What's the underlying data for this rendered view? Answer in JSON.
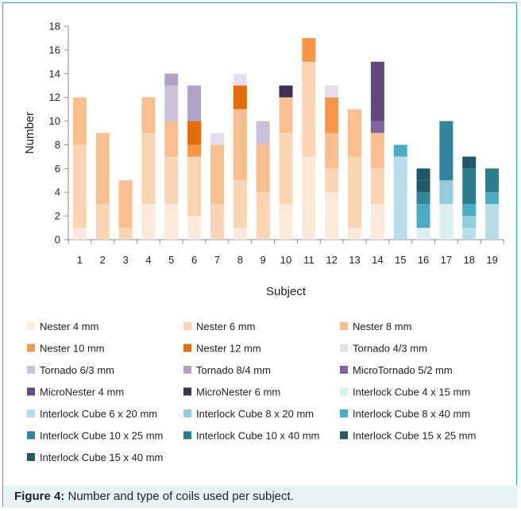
{
  "caption": {
    "label": "Figure 4:",
    "text": " Number and type of coils used per subject."
  },
  "chart_data": {
    "type": "bar",
    "stacked": true,
    "xlabel": "Subject",
    "ylabel": "Number",
    "ylim": [
      0,
      18
    ],
    "yticks": [
      0,
      2,
      4,
      6,
      8,
      10,
      12,
      14,
      16,
      18
    ],
    "grid": false,
    "legend_position": "bottom",
    "categories": [
      "1",
      "2",
      "3",
      "4",
      "5",
      "6",
      "7",
      "8",
      "9",
      "10",
      "11",
      "12",
      "13",
      "14",
      "15",
      "16",
      "17",
      "18",
      "19"
    ],
    "series": [
      {
        "name": "Nester 4 mm",
        "color": "#fde9d9",
        "values": [
          1,
          0,
          0,
          3,
          3,
          2,
          0,
          1,
          0,
          3,
          7,
          4,
          1,
          3,
          0,
          0,
          0,
          0,
          0
        ]
      },
      {
        "name": "Nester 6 mm",
        "color": "#fbd4b4",
        "values": [
          7,
          3,
          1,
          6,
          4,
          5,
          3,
          4,
          4,
          6,
          8,
          2,
          6,
          3,
          0,
          0,
          0,
          0,
          0
        ]
      },
      {
        "name": "Nester 8 mm",
        "color": "#fabf8f",
        "values": [
          4,
          6,
          4,
          3,
          3,
          0,
          5,
          6,
          4,
          3,
          0,
          3,
          4,
          3,
          0,
          0,
          0,
          0,
          0
        ]
      },
      {
        "name": "Nester 10 mm",
        "color": "#f79646",
        "values": [
          0,
          0,
          0,
          0,
          0,
          1,
          0,
          0,
          0,
          0,
          2,
          3,
          0,
          0,
          0,
          0,
          0,
          0,
          0
        ]
      },
      {
        "name": "Nester 12 mm",
        "color": "#e36c09",
        "values": [
          0,
          0,
          0,
          0,
          0,
          2,
          0,
          2,
          0,
          0,
          0,
          0,
          0,
          0,
          0,
          0,
          0,
          0,
          0
        ]
      },
      {
        "name": "Tornado 4/3 mm",
        "color": "#e5dfec",
        "values": [
          0,
          0,
          0,
          0,
          0,
          0,
          1,
          1,
          0,
          0,
          0,
          1,
          0,
          0,
          0,
          0,
          0,
          0,
          0
        ]
      },
      {
        "name": "Tornado 6/3 mm",
        "color": "#ccc1d9",
        "values": [
          0,
          0,
          0,
          0,
          3,
          0,
          0,
          0,
          2,
          0,
          0,
          0,
          0,
          0,
          0,
          0,
          0,
          0,
          0
        ]
      },
      {
        "name": "Tornado 8/4 mm",
        "color": "#b2a1c7",
        "values": [
          0,
          0,
          0,
          0,
          1,
          3,
          0,
          0,
          0,
          0,
          0,
          0,
          0,
          0,
          0,
          0,
          0,
          0,
          0
        ]
      },
      {
        "name": "MicroTornado 5/2 mm",
        "color": "#8064a2",
        "values": [
          0,
          0,
          0,
          0,
          0,
          0,
          0,
          0,
          0,
          0,
          0,
          0,
          0,
          1,
          0,
          0,
          0,
          0,
          0
        ]
      },
      {
        "name": "MicroNester 4 mm",
        "color": "#60497a",
        "values": [
          0,
          0,
          0,
          0,
          0,
          0,
          0,
          0,
          0,
          0,
          0,
          0,
          0,
          5,
          0,
          0,
          0,
          0,
          0
        ]
      },
      {
        "name": "MicroNester 6 mm",
        "color": "#3f3151",
        "values": [
          0,
          0,
          0,
          0,
          0,
          0,
          0,
          0,
          0,
          1,
          0,
          0,
          0,
          0,
          0,
          0,
          0,
          0,
          0
        ]
      },
      {
        "name": "Interlock Cube 4 x 15 mm",
        "color": "#daeef3",
        "values": [
          0,
          0,
          0,
          0,
          0,
          0,
          0,
          0,
          0,
          0,
          0,
          0,
          0,
          0,
          0,
          1,
          3,
          0,
          0
        ]
      },
      {
        "name": "Interlock Cube 6 x 20 mm",
        "color": "#b6dde8",
        "values": [
          0,
          0,
          0,
          0,
          0,
          0,
          0,
          0,
          0,
          0,
          0,
          0,
          0,
          0,
          7,
          0,
          0,
          1,
          3
        ]
      },
      {
        "name": "Interlock Cube 8 x 20 mm",
        "color": "#92cddc",
        "values": [
          0,
          0,
          0,
          0,
          0,
          0,
          0,
          0,
          0,
          0,
          0,
          0,
          0,
          0,
          0,
          0,
          2,
          1,
          0
        ]
      },
      {
        "name": "Interlock Cube 8 x 40 mm",
        "color": "#4bacc6",
        "values": [
          0,
          0,
          0,
          0,
          0,
          0,
          0,
          0,
          0,
          0,
          0,
          0,
          0,
          0,
          1,
          2,
          0,
          1,
          1
        ]
      },
      {
        "name": "Interlock Cube 10 x 25 mm",
        "color": "#31859c",
        "values": [
          0,
          0,
          0,
          0,
          0,
          0,
          0,
          0,
          0,
          0,
          0,
          0,
          0,
          0,
          0,
          1,
          5,
          0,
          0
        ]
      },
      {
        "name": "Interlock Cube 10 x 40 mm",
        "color": "#2b7d8c",
        "values": [
          0,
          0,
          0,
          0,
          0,
          0,
          0,
          0,
          0,
          0,
          0,
          0,
          0,
          0,
          0,
          0,
          0,
          3,
          2
        ]
      },
      {
        "name": "Interlock Cube 15 x 25 mm",
        "color": "#215968",
        "values": [
          0,
          0,
          0,
          0,
          0,
          0,
          0,
          0,
          0,
          0,
          0,
          0,
          0,
          0,
          0,
          1,
          0,
          1,
          0
        ]
      },
      {
        "name": "Interlock Cube 15 x 40 mm",
        "color": "#205867",
        "values": [
          0,
          0,
          0,
          0,
          0,
          0,
          0,
          0,
          0,
          0,
          0,
          0,
          0,
          0,
          0,
          1,
          0,
          0,
          0
        ]
      }
    ]
  }
}
